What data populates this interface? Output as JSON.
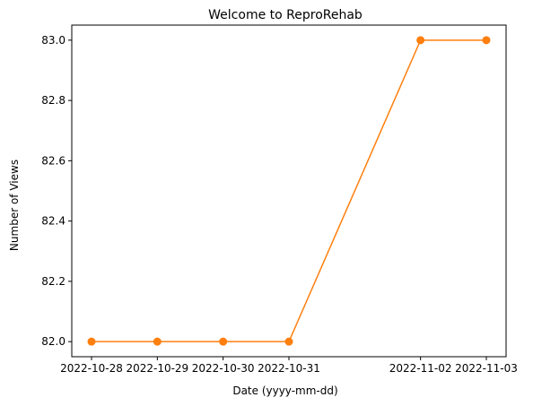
{
  "chart_data": {
    "type": "line",
    "title": "Welcome to ReproRehab",
    "xlabel": "Date (yyyy-mm-dd)",
    "ylabel": "Number of Views",
    "x": [
      "2022-10-28",
      "2022-10-29",
      "2022-10-30",
      "2022-10-31",
      "2022-11-02",
      "2022-11-03"
    ],
    "xticks": [
      "2022-10-28",
      "2022-10-29",
      "2022-10-30",
      "2022-10-31",
      "2022-11-02",
      "2022-11-03"
    ],
    "series": [
      {
        "values": [
          82.0,
          82.0,
          82.0,
          82.0,
          83.0,
          83.0
        ],
        "color": "#ff7f0e"
      }
    ],
    "ylim": [
      81.95,
      83.05
    ],
    "yticks": [
      82.0,
      82.2,
      82.4,
      82.6,
      82.8,
      83.0
    ],
    "ytick_labels": [
      "82.0",
      "82.2",
      "82.4",
      "82.6",
      "82.8",
      "83.0"
    ],
    "grid": false,
    "legend": "none",
    "marker": "circle"
  }
}
